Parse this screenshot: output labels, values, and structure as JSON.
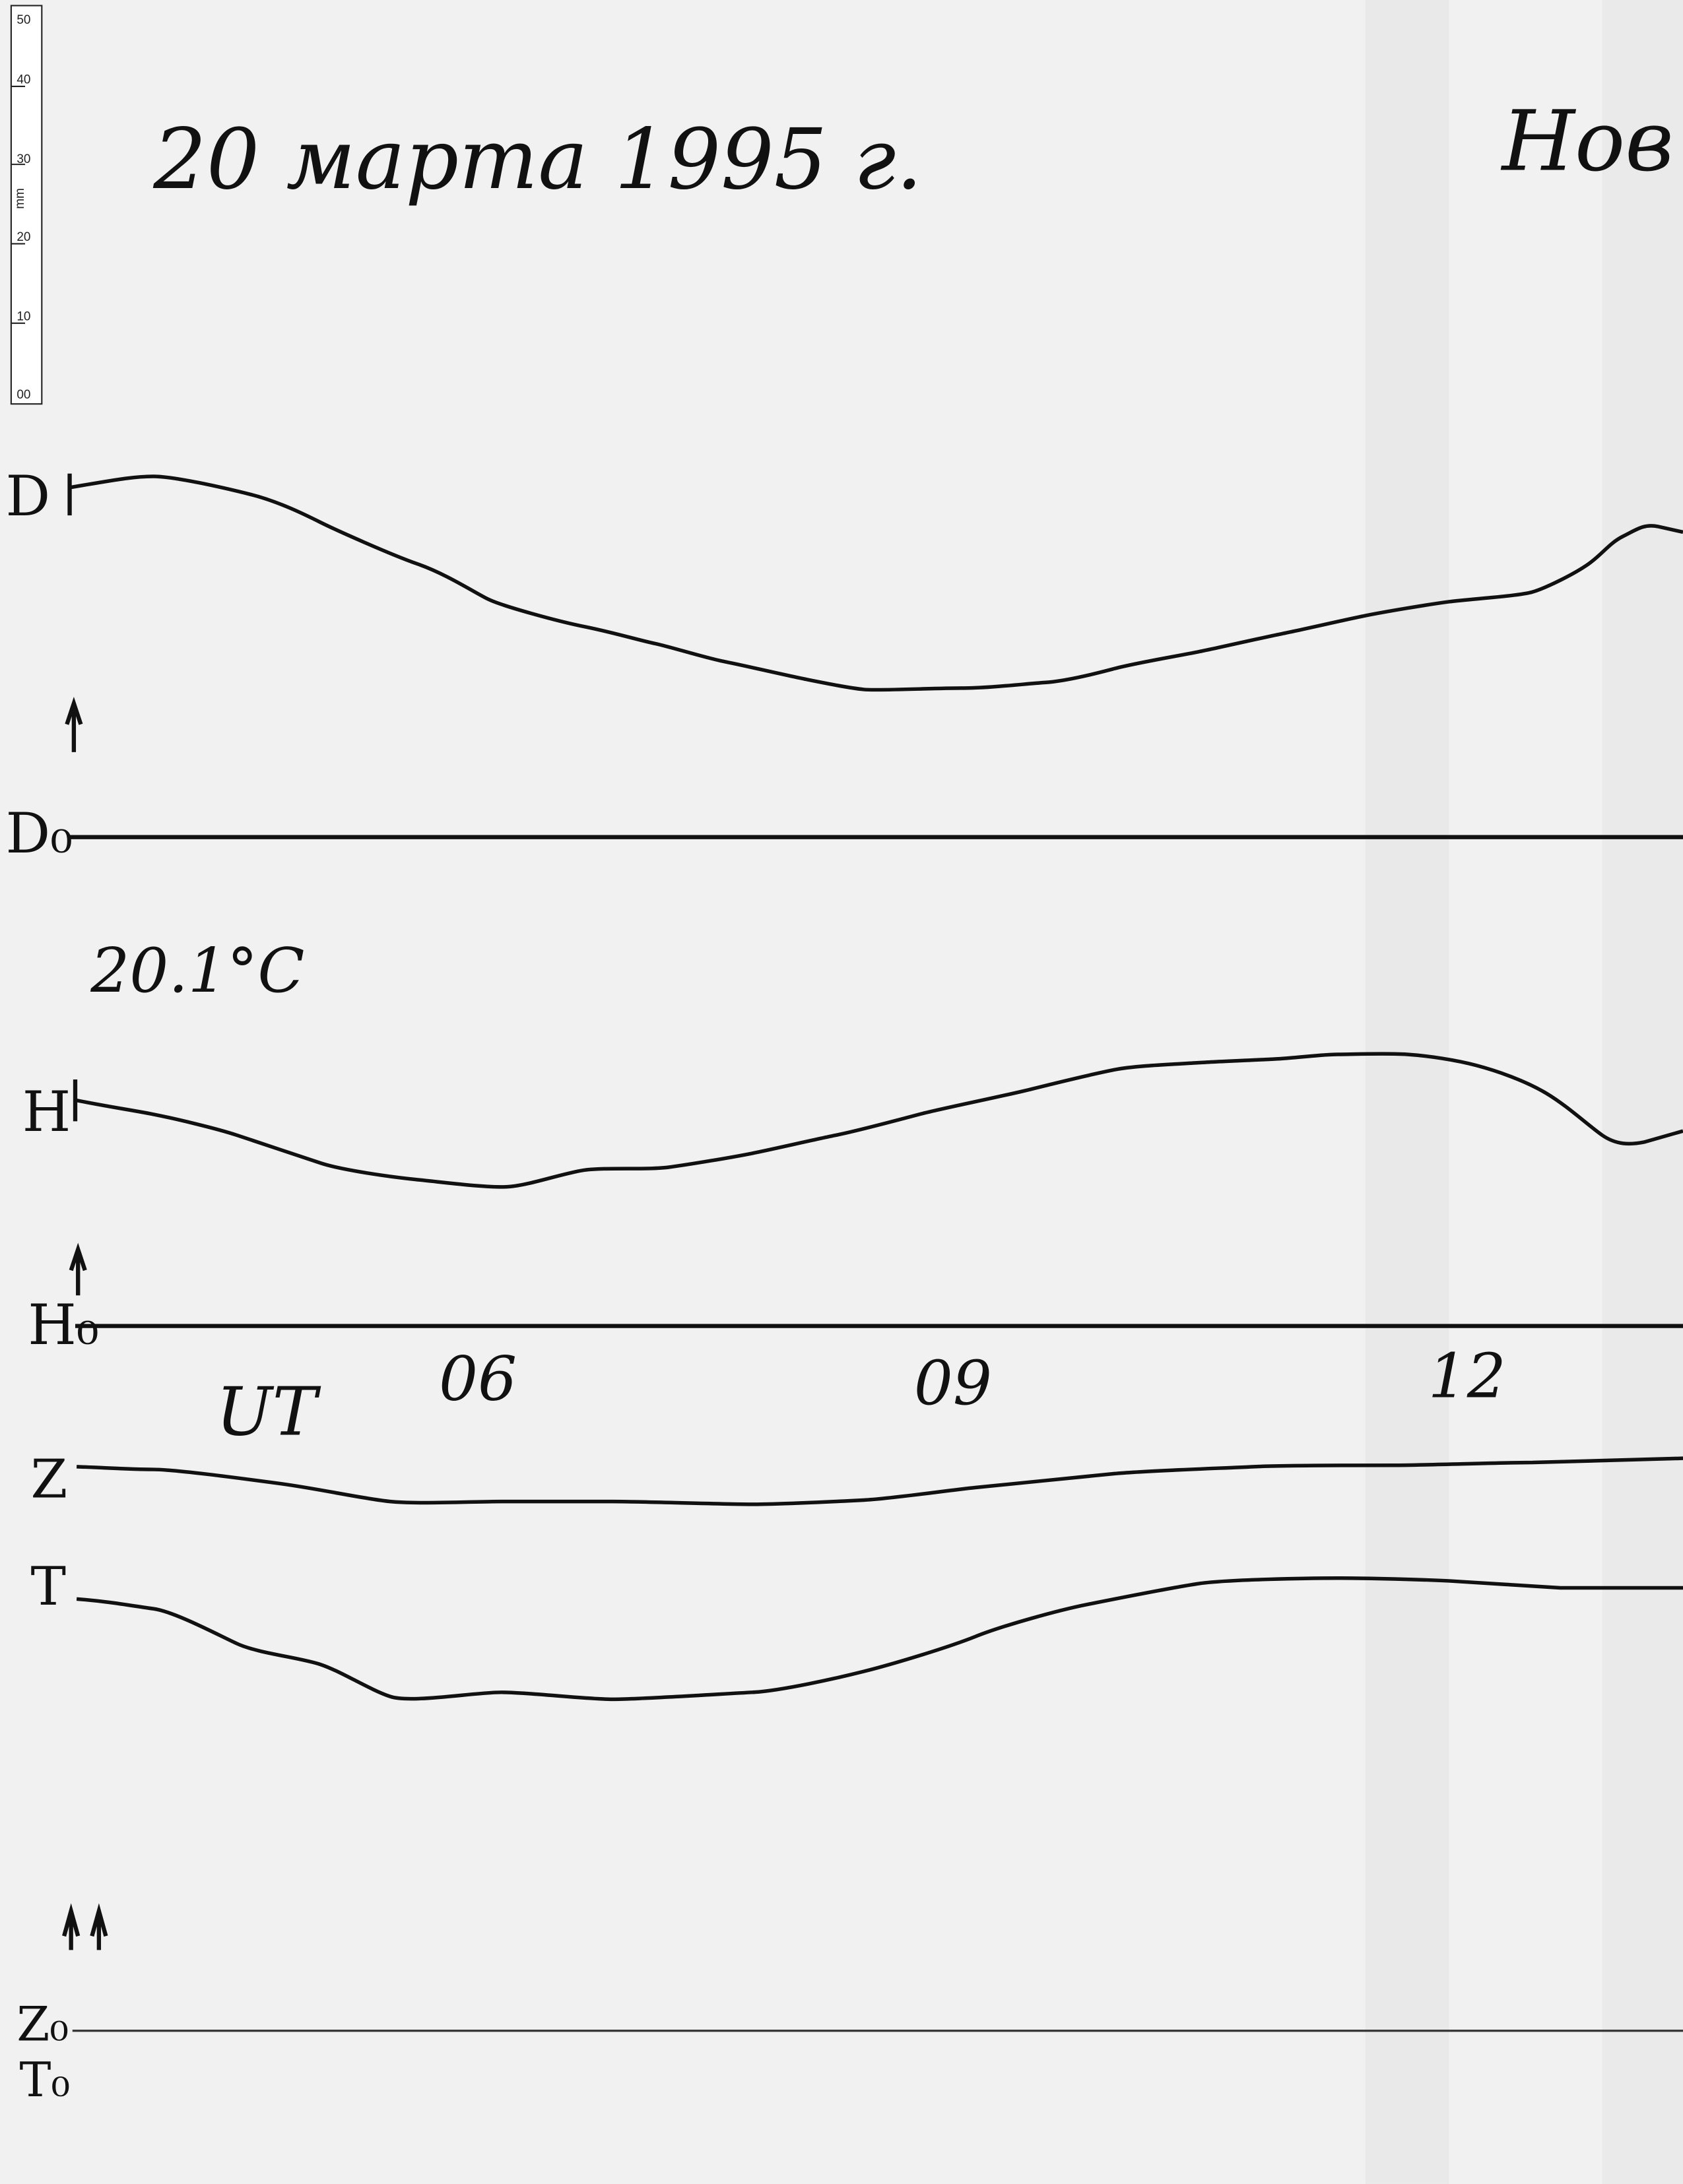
{
  "header": {
    "date": "20 марта 1995 г.",
    "station": "Нов"
  },
  "ruler": {
    "labels": [
      "50",
      "40",
      "30",
      "mm",
      "20",
      "10",
      "00"
    ]
  },
  "traces": {
    "d": "D",
    "d0": "D₀",
    "h": "H",
    "h0": "H₀",
    "z": "Z",
    "t": "T",
    "z0": "Z₀",
    "t0": "T₀"
  },
  "temperature": "20.1°C",
  "time_axis": {
    "label": "UT",
    "ticks": [
      "06",
      "09",
      "12"
    ]
  }
}
